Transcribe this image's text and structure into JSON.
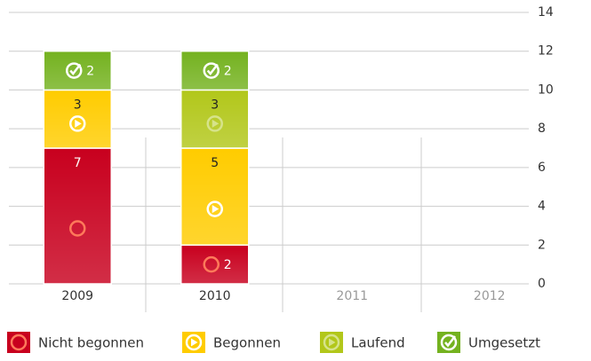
{
  "chart_data": {
    "type": "bar",
    "stacked": true,
    "categories": [
      "2009",
      "2010",
      "2011",
      "2012"
    ],
    "series": [
      {
        "name": "Nicht begonnen",
        "color": "#c8001e",
        "values": [
          7,
          2,
          null,
          null
        ]
      },
      {
        "name": "Begonnen",
        "color": "#ffcc00",
        "values": [
          3,
          5,
          null,
          null
        ]
      },
      {
        "name": "Laufend",
        "color": "#b2c71a",
        "values": [
          null,
          3,
          null,
          null
        ]
      },
      {
        "name": "Umgesetzt",
        "color": "#74b21f",
        "values": [
          2,
          2,
          null,
          null
        ]
      }
    ],
    "ylim": [
      0,
      14
    ],
    "yticks": [
      0,
      2,
      4,
      6,
      8,
      10,
      12,
      14
    ],
    "grid": true
  }
}
